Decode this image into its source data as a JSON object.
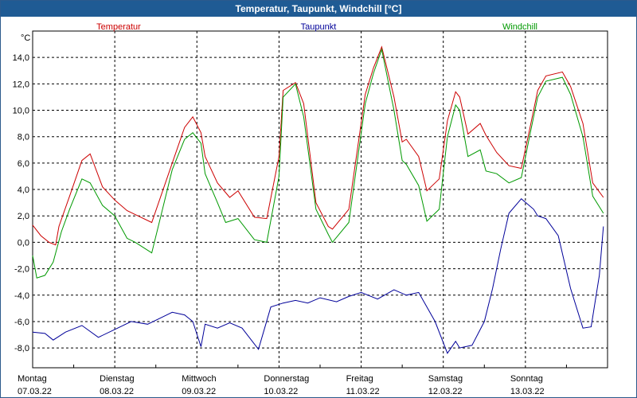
{
  "window": {
    "title": "Temperatur, Taupunkt, Windchill [°C]"
  },
  "chart_data": {
    "type": "line",
    "title": "Temperatur, Taupunkt, Windchill [°C]",
    "ylabel": "°C",
    "ylim": [
      -9.5,
      16.0
    ],
    "yticks": [
      -8,
      -6,
      -4,
      -2,
      0,
      2,
      4,
      6,
      8,
      10,
      12,
      14
    ],
    "ytick_labels": [
      "-8,0",
      "-6,0",
      "-4,0",
      "-2,0",
      "0,0",
      "2,0",
      "4,0",
      "6,0",
      "8,0",
      "10,0",
      "12,0",
      "14,0"
    ],
    "xlim": [
      0,
      7
    ],
    "x_days": [
      {
        "day": "Montag",
        "date": "07.03.22"
      },
      {
        "day": "Dienstag",
        "date": "08.03.22"
      },
      {
        "day": "Mittwoch",
        "date": "09.03.22"
      },
      {
        "day": "Donnerstag",
        "date": "10.03.22"
      },
      {
        "day": "Freitag",
        "date": "11.03.22"
      },
      {
        "day": "Samstag",
        "date": "12.03.22"
      },
      {
        "day": "Sonntag",
        "date": "13.03.22"
      }
    ],
    "grid": true,
    "series": [
      {
        "name": "Temperatur",
        "color": "#cc0000",
        "x": [
          0,
          0.1,
          0.2,
          0.28,
          0.32,
          0.45,
          0.6,
          0.7,
          0.85,
          1.0,
          1.15,
          1.25,
          1.45,
          1.7,
          1.85,
          1.95,
          2.05,
          2.1,
          2.25,
          2.4,
          2.5,
          2.7,
          2.85,
          3.0,
          3.05,
          3.2,
          3.3,
          3.45,
          3.6,
          3.65,
          3.85,
          4.05,
          4.15,
          4.25,
          4.4,
          4.5,
          4.55,
          4.7,
          4.8,
          4.95,
          5.05,
          5.15,
          5.2,
          5.3,
          5.45,
          5.52,
          5.65,
          5.8,
          5.95,
          6.05,
          6.15,
          6.25,
          6.45,
          6.55,
          6.7,
          6.82,
          6.95
        ],
        "values": [
          1.3,
          0.5,
          0.0,
          -0.2,
          1.2,
          3.5,
          6.2,
          6.7,
          4.2,
          3.2,
          2.4,
          2.1,
          1.5,
          6.0,
          8.7,
          9.5,
          8.3,
          6.5,
          4.5,
          3.4,
          3.9,
          1.9,
          1.8,
          6.5,
          11.5,
          12.1,
          10.5,
          3.0,
          1.2,
          1.0,
          2.5,
          11.2,
          13.2,
          14.8,
          11.0,
          7.6,
          7.8,
          6.5,
          3.9,
          4.8,
          9.2,
          11.4,
          11.0,
          8.2,
          9.0,
          8.1,
          6.8,
          5.8,
          5.6,
          8.5,
          11.5,
          12.6,
          12.9,
          11.8,
          9.0,
          4.5,
          3.4
        ],
        "label_pos": "top-left"
      },
      {
        "name": "Taupunkt",
        "color": "#000099",
        "x": [
          0,
          0.15,
          0.25,
          0.4,
          0.6,
          0.8,
          1.0,
          1.2,
          1.4,
          1.6,
          1.7,
          1.85,
          1.95,
          2.05,
          2.1,
          2.25,
          2.4,
          2.55,
          2.75,
          2.9,
          3.05,
          3.2,
          3.35,
          3.5,
          3.7,
          3.85,
          4.0,
          4.2,
          4.4,
          4.55,
          4.7,
          4.9,
          5.05,
          5.15,
          5.2,
          5.35,
          5.5,
          5.6,
          5.7,
          5.8,
          5.95,
          6.1,
          6.15,
          6.25,
          6.4,
          6.55,
          6.7,
          6.8,
          6.9,
          6.95
        ],
        "values": [
          -6.8,
          -6.9,
          -7.4,
          -6.8,
          -6.3,
          -7.2,
          -6.6,
          -6.0,
          -6.2,
          -5.6,
          -5.3,
          -5.5,
          -6.0,
          -7.9,
          -6.2,
          -6.5,
          -6.1,
          -6.5,
          -8.1,
          -4.9,
          -4.6,
          -4.4,
          -4.6,
          -4.2,
          -4.5,
          -4.1,
          -3.8,
          -4.3,
          -3.6,
          -4.0,
          -3.8,
          -6.0,
          -8.4,
          -7.5,
          -8.0,
          -7.8,
          -6.0,
          -3.5,
          -0.5,
          2.2,
          3.3,
          2.5,
          2.0,
          1.8,
          0.5,
          -3.5,
          -6.5,
          -6.4,
          -2.5,
          1.2
        ],
        "label_pos": "top-center"
      },
      {
        "name": "Windchill",
        "color": "#009900",
        "x": [
          0,
          0.05,
          0.15,
          0.25,
          0.35,
          0.45,
          0.6,
          0.7,
          0.85,
          1.0,
          1.15,
          1.25,
          1.45,
          1.7,
          1.85,
          1.95,
          2.05,
          2.1,
          2.25,
          2.35,
          2.5,
          2.7,
          2.85,
          3.0,
          3.05,
          3.2,
          3.3,
          3.45,
          3.6,
          3.65,
          3.85,
          4.05,
          4.15,
          4.25,
          4.4,
          4.5,
          4.55,
          4.7,
          4.8,
          4.95,
          5.05,
          5.15,
          5.2,
          5.3,
          5.45,
          5.52,
          5.65,
          5.8,
          5.95,
          6.05,
          6.15,
          6.25,
          6.45,
          6.55,
          6.7,
          6.82,
          6.95
        ],
        "values": [
          -1.0,
          -2.7,
          -2.5,
          -1.5,
          0.8,
          2.5,
          4.8,
          4.5,
          2.8,
          2.0,
          0.3,
          0.0,
          -0.8,
          5.5,
          7.8,
          8.3,
          7.5,
          5.2,
          3.0,
          1.5,
          1.8,
          0.2,
          0.0,
          5.0,
          11.0,
          12.0,
          9.5,
          2.5,
          0.6,
          0.0,
          1.5,
          10.5,
          12.8,
          14.6,
          10.0,
          6.2,
          5.9,
          4.3,
          1.6,
          2.5,
          8.0,
          10.4,
          10.0,
          6.5,
          7.0,
          5.4,
          5.2,
          4.5,
          4.9,
          8.0,
          11.0,
          12.2,
          12.5,
          11.2,
          8.0,
          3.5,
          2.2
        ],
        "label_pos": "top-right"
      }
    ]
  }
}
